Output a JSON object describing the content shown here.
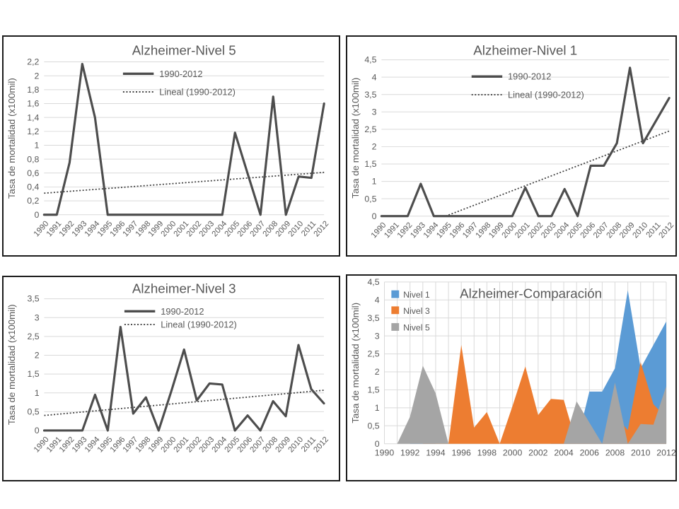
{
  "slide": {
    "background": "#ffffff"
  },
  "colors": {
    "line_series": "#4d4d4d",
    "trend": "#404040",
    "grid": "#d9d9d9",
    "tick_text": "#595959",
    "title_text": "#595959",
    "panel_border": "#1c1c1c",
    "nivel1_blue": "#5B9BD5",
    "nivel3_orange": "#ED7D31",
    "nivel5_gray": "#A5A5A5"
  },
  "chart_data": [
    {
      "type": "line",
      "title": "Alzheimer-Nivel 5",
      "ylabel": "Tasa de mortalidad (x100mil)",
      "xlabel": "",
      "x": [
        1990,
        1991,
        1992,
        1993,
        1994,
        1995,
        1996,
        1997,
        1998,
        1999,
        2000,
        2001,
        2002,
        2003,
        2004,
        2005,
        2006,
        2007,
        2008,
        2009,
        2010,
        2011,
        2012
      ],
      "series": [
        {
          "name": "1990-2012",
          "values": [
            0,
            0,
            0.75,
            2.17,
            1.4,
            0,
            0,
            0,
            0,
            0,
            0,
            0,
            0,
            0,
            0,
            1.18,
            0.59,
            0,
            1.7,
            0,
            0.55,
            0.53,
            1.6
          ]
        }
      ],
      "trendline": {
        "name": "Lineal (1990-2012)",
        "points": [
          [
            1990,
            0.31
          ],
          [
            2012,
            0.61
          ]
        ]
      },
      "ylim": [
        0,
        2.2
      ],
      "ytick_step": 0.2,
      "ytick_labels": [
        "0",
        "0,2",
        "0,4",
        "0,6",
        "0,8",
        "1",
        "1,2",
        "1,4",
        "1,6",
        "1,8",
        "2",
        "2,2"
      ],
      "legend": [
        "1990-2012",
        "Lineal (1990-2012)"
      ],
      "legend_position": "top-center-inside",
      "grid": "horizontal"
    },
    {
      "type": "line",
      "title": "Alzheimer-Nivel 1",
      "ylabel": "Tasa de mortalidad (x100mil)",
      "xlabel": "",
      "x": [
        1990,
        1991,
        1992,
        1993,
        1994,
        1995,
        1996,
        1997,
        1998,
        1999,
        2000,
        2001,
        2002,
        2003,
        2004,
        2005,
        2006,
        2007,
        2008,
        2009,
        2010,
        2011,
        2012
      ],
      "series": [
        {
          "name": "1990-2012",
          "values": [
            0,
            0,
            0,
            0.93,
            0,
            0,
            0,
            0,
            0,
            0,
            0,
            0.82,
            0,
            0,
            0.78,
            0,
            1.45,
            1.45,
            2.1,
            4.27,
            2.1,
            2.75,
            3.4
          ]
        }
      ],
      "trendline": {
        "name": "Lineal (1990-2012)",
        "points": [
          [
            1994.9,
            0
          ],
          [
            2012,
            2.45
          ]
        ]
      },
      "ylim": [
        0,
        4.5
      ],
      "ytick_step": 0.5,
      "ytick_labels": [
        "0",
        "0,5",
        "1",
        "1,5",
        "2",
        "2,5",
        "3",
        "3,5",
        "4",
        "4,5"
      ],
      "legend": [
        "1990-2012",
        "Lineal (1990-2012)"
      ],
      "legend_position": "top-center-inside",
      "grid": "horizontal"
    },
    {
      "type": "line",
      "title": "Alzheimer-Nivel 3",
      "ylabel": "Tasa de mortalidad (x100mil)",
      "xlabel": "",
      "x": [
        1990,
        1991,
        1992,
        1993,
        1994,
        1995,
        1996,
        1997,
        1998,
        1999,
        2000,
        2001,
        2002,
        2003,
        2004,
        2005,
        2006,
        2007,
        2008,
        2009,
        2010,
        2011,
        2012
      ],
      "series": [
        {
          "name": "1990-2012",
          "values": [
            0,
            0,
            0,
            0,
            0.95,
            0,
            2.75,
            0.45,
            0.88,
            0,
            1.05,
            2.15,
            0.8,
            1.25,
            1.22,
            0,
            0.4,
            0,
            0.78,
            0.38,
            2.27,
            1.1,
            0.72
          ]
        }
      ],
      "trendline": {
        "name": "Lineal (1990-2012)",
        "points": [
          [
            1990,
            0.4
          ],
          [
            2012,
            1.07
          ]
        ]
      },
      "ylim": [
        0,
        3.5
      ],
      "ytick_step": 0.5,
      "ytick_labels": [
        "0",
        "0,5",
        "1",
        "1,5",
        "2",
        "2,5",
        "3",
        "3,5"
      ],
      "legend": [
        "1990-2012",
        "Lineal (1990-2012)"
      ],
      "legend_position": "top-center-inside",
      "grid": "horizontal"
    },
    {
      "type": "area",
      "title": "Alzheimer-Comparación",
      "ylabel": "Tasa de mortalidad (x100mil)",
      "xlabel": "",
      "x": [
        1990,
        1991,
        1992,
        1993,
        1994,
        1995,
        1996,
        1997,
        1998,
        1999,
        2000,
        2001,
        2002,
        2003,
        2004,
        2005,
        2006,
        2007,
        2008,
        2009,
        2010,
        2011,
        2012
      ],
      "series": [
        {
          "name": "Nivel 1",
          "color": "nivel1_blue",
          "values": [
            0,
            0,
            0,
            0.93,
            0,
            0,
            0,
            0,
            0,
            0,
            0,
            0.82,
            0,
            0,
            0.78,
            0,
            1.45,
            1.45,
            2.1,
            4.27,
            2.1,
            2.75,
            3.4
          ]
        },
        {
          "name": "Nivel 3",
          "color": "nivel3_orange",
          "values": [
            0,
            0,
            0,
            0,
            0.95,
            0,
            2.75,
            0.45,
            0.88,
            0,
            1.05,
            2.15,
            0.8,
            1.25,
            1.22,
            0,
            0.4,
            0,
            0.78,
            0.38,
            2.27,
            1.1,
            0.72
          ]
        },
        {
          "name": "Nivel 5",
          "color": "nivel5_gray",
          "values": [
            0,
            0,
            0.75,
            2.17,
            1.4,
            0,
            0,
            0,
            0,
            0,
            0,
            0,
            0,
            0,
            0,
            1.18,
            0.59,
            0,
            1.7,
            0,
            0.55,
            0.53,
            1.6
          ]
        }
      ],
      "ylim": [
        0,
        4.5
      ],
      "ytick_step": 0.5,
      "ytick_labels": [
        "0",
        "0,5",
        "1",
        "1,5",
        "2",
        "2,5",
        "3",
        "3,5",
        "4",
        "4,5"
      ],
      "xtick_labels": [
        "1990",
        "1992",
        "1994",
        "1996",
        "1998",
        "2000",
        "2002",
        "2004",
        "2006",
        "2008",
        "2010",
        "2012"
      ],
      "legend": [
        "Nivel 1",
        "Nivel 3",
        "Nivel 5"
      ],
      "legend_position": "top-left-inside",
      "grid": "both"
    }
  ]
}
